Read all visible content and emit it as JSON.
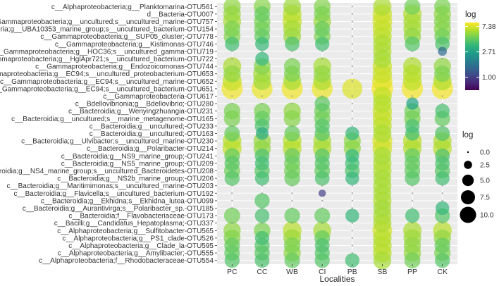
{
  "chart_data": {
    "type": "bubble-heatmap",
    "xlabel": "Localities",
    "localities": [
      "PC",
      "CC",
      "WB",
      "CI",
      "PB",
      "SB",
      "PP",
      "CK"
    ],
    "taxa": [
      "c__Alphaproteobacteria;g__Planktomarina-OTU561",
      "d__Bacteria-OTU007",
      "c__Gammaproteobacteria;g__uncultured;s__uncultured_marine-OTU757",
      "c__Gammaproteobacteria;g__UBA10353_marine_group;s__uncultured_bacterium-OTU154",
      "c__Gammaproteobacteria;g__SUP05_cluster;-OTU778",
      "c__Gammaproteobacteria;g__Kistimonas-OTU746",
      "c__Gammaproteobacteria;g__HOC36;s__uncultured_gamma-OTU719",
      "c__Gammaproteobacteria;g__HglApr721;s__uncultured_bacterium-OTU722",
      "c__Gammaproteobacteria;g__Endozoicomonas-OTU744",
      "c__Gammaproteobacteria;g__EC94;s__uncultured_proteobacterium-OTU653",
      "c__Gammaproteobacteria;g__EC94;s__uncultured_marine-OTU652",
      "c__Gammaproteobacteria;g__EC94;s__uncultured_bacterium-OTU651",
      "c__Gammaproteobacteria-OTU617",
      "c__Bdellovibrionia;g__Bdellovibrio;-OTU280",
      "c__Bacteroidia;g__Wenyingzhuangia-OTU231",
      "c__Bacteroidia;g__uncultured;s__marine_metagenome-OTU165",
      "c__Bacteroidia;g__uncultured;-OTU233",
      "c__Bacteroidia;g__uncultured;-OTU163",
      "c__Bacteroidia;g__Ulvibacter;s__uncultured_marine-OTU230",
      "c__Bacteroidia;g__Polaribacter-OTU214",
      "c__Bacteroidia;g__NS9_marine_group;-OTU241",
      "c__Bacteroidia;g__NS5_marine_group;-OTU209",
      "c__Bacteroidia;g__NS4_marine_group;s__uncultured_Bacteroidetes-OTU208",
      "c__Bacteroidia;g__NS2b_marine_group;-OTU206",
      "c__Bacteroidia;g__Maritimimonas;s__uncultured_marine-OTU203",
      "c__Bacteroidia;g__Flavicella;s__uncultured_bacterium-OTU192",
      "c__Bacteroidia;g__Ekhidna;s__Ekhidna_lutea-OTU099",
      "c__Bacteroidia;g__Aurantivirga;s__Polaribacter_sp.-OTU185",
      "c__Bacteroidia;f__Flavobacteriaceae-OTU173",
      "c__Bacilli;g__Candidatus_Hepatoplasma;-OTU337",
      "c__Alphaproteobacteria;g__Sulfitobacter-OTU565",
      "c__Alphaproteobacteria;g__PS1_clade-OTU526",
      "c__Alphaproteobacteria;g__Clade_la-OTU595",
      "c__Alphaproteobacteria;g__Amylibacter;-OTU555",
      "c__Alphaproteobacteria;f__Rhodobacteraceae-OTU554"
    ],
    "values": [
      [
        5.5,
        5.3,
        5.8,
        5.2,
        0,
        6.2,
        4.8,
        5.0
      ],
      [
        5.7,
        4.5,
        6.5,
        5.0,
        0,
        7.0,
        6.3,
        5.5
      ],
      [
        6.0,
        5.0,
        6.8,
        5.8,
        0,
        7.2,
        6.0,
        5.2
      ],
      [
        5.0,
        4.8,
        6.0,
        4.6,
        0,
        6.8,
        6.0,
        5.4
      ],
      [
        5.2,
        4.5,
        5.8,
        5.0,
        0,
        6.6,
        5.5,
        4.8
      ],
      [
        3.8,
        3.6,
        4.0,
        3.8,
        0,
        6.2,
        4.2,
        4.0
      ],
      [
        0,
        0,
        0,
        0,
        0,
        6.3,
        0,
        1.5
      ],
      [
        0,
        3.5,
        0,
        0,
        0,
        6.0,
        0,
        0
      ],
      [
        6.2,
        5.2,
        5.0,
        6.0,
        0,
        7.0,
        6.3,
        5.5
      ],
      [
        5.5,
        6.0,
        5.0,
        5.5,
        0,
        6.9,
        6.5,
        5.0
      ],
      [
        6.8,
        5.8,
        6.0,
        6.2,
        0,
        7.6,
        6.6,
        6.3
      ],
      [
        8.2,
        8.0,
        8.2,
        8.0,
        7.5,
        8.5,
        8.3,
        8.3
      ],
      [
        0,
        0,
        0,
        0,
        0,
        6.6,
        0,
        0
      ],
      [
        0,
        0,
        0,
        4.3,
        0,
        6.4,
        2.8,
        0
      ],
      [
        5.0,
        5.0,
        5.5,
        4.8,
        0,
        7.0,
        4.8,
        3.9
      ],
      [
        5.0,
        4.5,
        5.3,
        4.8,
        0,
        6.8,
        5.0,
        4.5
      ],
      [
        0,
        4.0,
        0,
        4.2,
        0,
        6.6,
        3.9,
        0
      ],
      [
        4.5,
        3.0,
        4.6,
        4.3,
        3.5,
        6.2,
        3.8,
        4.1
      ],
      [
        6.4,
        5.6,
        6.4,
        6.0,
        5.4,
        7.4,
        6.5,
        6.2
      ],
      [
        6.8,
        5.5,
        6.5,
        6.3,
        5.4,
        7.1,
        6.3,
        6.5
      ],
      [
        4.5,
        4.0,
        4.6,
        4.2,
        3.5,
        6.0,
        4.5,
        4.0
      ],
      [
        4.3,
        3.8,
        4.8,
        4.2,
        3.8,
        6.3,
        4.5,
        4.0
      ],
      [
        4.8,
        4.3,
        4.9,
        4.5,
        4.0,
        6.3,
        4.5,
        4.3
      ],
      [
        4.2,
        3.8,
        4.6,
        4.0,
        3.5,
        6.0,
        4.2,
        3.8
      ],
      [
        0,
        0,
        0,
        0,
        0,
        6.2,
        0,
        0
      ],
      [
        0,
        0,
        0,
        1.0,
        0,
        6.0,
        0,
        0
      ],
      [
        0,
        4.2,
        0,
        0,
        0,
        6.3,
        0,
        0
      ],
      [
        0,
        0,
        0,
        0,
        0,
        5.9,
        0,
        3.5
      ],
      [
        4.8,
        3.9,
        4.5,
        4.5,
        3.5,
        6.2,
        3.8,
        4.2
      ],
      [
        0,
        0,
        0,
        0,
        0,
        6.2,
        0,
        0
      ],
      [
        5.5,
        5.0,
        6.5,
        6.0,
        0,
        7.2,
        6.2,
        6.5
      ],
      [
        5.2,
        3.8,
        5.8,
        4.5,
        0,
        6.4,
        5.8,
        5.5
      ],
      [
        4.5,
        4.2,
        5.0,
        4.0,
        0,
        6.5,
        5.5,
        4.6
      ],
      [
        4.5,
        4.3,
        5.5,
        4.2,
        0,
        6.5,
        5.6,
        5.0
      ],
      [
        4.2,
        4.0,
        4.5,
        4.2,
        3.8,
        6.0,
        4.8,
        4.2
      ]
    ],
    "color_legend": {
      "title": "log",
      "breaks": [
        "7.38",
        "2.71",
        "1.00"
      ],
      "scale": "log",
      "range": [
        0.6,
        8.6
      ],
      "colors": [
        "#440154",
        "#482878",
        "#3e4989",
        "#31688e",
        "#26828e",
        "#1f9e89",
        "#35b779",
        "#6ece58",
        "#b5de2b",
        "#fde725"
      ]
    },
    "size_legend": {
      "title": "log",
      "breaks": [
        "0.0",
        "2.5",
        "5.0",
        "7.5",
        "10.0"
      ]
    },
    "grid": true,
    "background": "#ebebeb",
    "point_alpha": 0.7
  }
}
